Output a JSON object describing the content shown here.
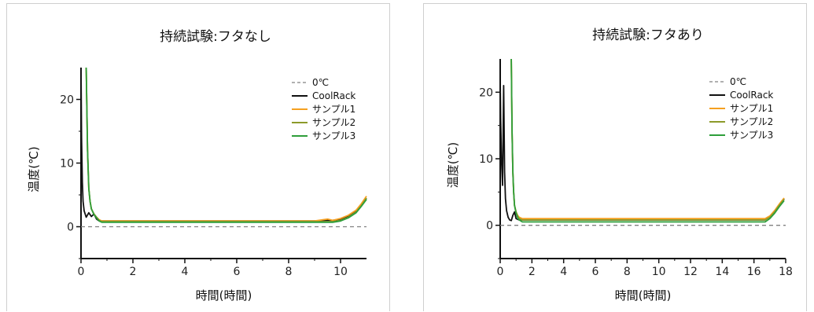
{
  "chart_data": [
    {
      "type": "line",
      "title": "持続試験:フタなし",
      "xlabel": "時間(時間)",
      "ylabel": "温度(℃)",
      "xlim": [
        0,
        11
      ],
      "ylim": [
        -5,
        25
      ],
      "xticks": [
        0,
        2,
        4,
        6,
        8,
        10
      ],
      "yticks": [
        0,
        10,
        20
      ],
      "legend_position": "top-right",
      "series": [
        {
          "name": "0℃",
          "color": "#808080",
          "dash": true,
          "x": [
            0,
            11
          ],
          "y": [
            0,
            0
          ]
        },
        {
          "name": "CoolRack",
          "color": "#111111",
          "x": [
            0,
            0.02,
            0.05,
            0.08,
            0.12,
            0.2,
            0.3,
            0.4,
            0.5,
            0.6,
            0.7,
            1,
            2,
            3,
            4,
            5,
            6,
            7,
            8,
            9,
            9.5,
            9.7,
            10,
            10.3,
            10.6,
            10.8,
            11
          ],
          "y": [
            25,
            14,
            7,
            4,
            2.5,
            1.5,
            2.2,
            1.6,
            2.0,
            1.2,
            0.9,
            0.9,
            0.9,
            0.9,
            0.9,
            0.9,
            0.9,
            0.9,
            0.9,
            0.9,
            1.0,
            1.0,
            1.2,
            1.6,
            2.4,
            3.4,
            4.5
          ]
        },
        {
          "name": "サンプル1",
          "color": "#f5a020",
          "x": [
            0.2,
            0.25,
            0.3,
            0.35,
            0.4,
            0.5,
            0.6,
            0.7,
            0.8,
            1,
            2,
            3,
            4,
            5,
            6,
            7,
            8,
            9,
            9.5,
            9.7,
            10,
            10.3,
            10.6,
            10.8,
            11
          ],
          "y": [
            25,
            12,
            6,
            4,
            2.8,
            2.0,
            1.5,
            1.1,
            0.9,
            0.9,
            0.9,
            0.9,
            0.9,
            0.9,
            0.9,
            0.9,
            0.9,
            0.9,
            1.2,
            1.0,
            1.3,
            1.8,
            2.6,
            3.6,
            4.8
          ]
        },
        {
          "name": "サンプル2",
          "color": "#8c9a2a",
          "x": [
            0.2,
            0.25,
            0.3,
            0.35,
            0.4,
            0.5,
            0.6,
            0.7,
            0.8,
            1,
            2,
            3,
            4,
            5,
            6,
            7,
            8,
            9,
            9.7,
            10,
            10.3,
            10.6,
            10.8,
            11
          ],
          "y": [
            25,
            12,
            6,
            4,
            2.8,
            2.0,
            1.5,
            1.0,
            0.8,
            0.8,
            0.8,
            0.8,
            0.8,
            0.8,
            0.8,
            0.8,
            0.8,
            0.8,
            0.8,
            1.0,
            1.5,
            2.3,
            3.3,
            4.5
          ]
        },
        {
          "name": "サンプル3",
          "color": "#2e9e3a",
          "x": [
            0.2,
            0.25,
            0.3,
            0.35,
            0.4,
            0.5,
            0.6,
            0.7,
            0.8,
            1,
            2,
            3,
            4,
            5,
            6,
            7,
            8,
            9,
            9.7,
            10,
            10.3,
            10.6,
            10.8,
            11
          ],
          "y": [
            25,
            12,
            6,
            4,
            2.8,
            1.9,
            1.4,
            0.9,
            0.7,
            0.7,
            0.7,
            0.7,
            0.7,
            0.7,
            0.7,
            0.7,
            0.7,
            0.7,
            0.7,
            0.9,
            1.4,
            2.2,
            3.2,
            4.3
          ]
        }
      ]
    },
    {
      "type": "line",
      "title": "持続試験:フタあり",
      "xlabel": "時間(時間)",
      "ylabel": "温度(℃)",
      "xlim": [
        0,
        18
      ],
      "ylim": [
        -5,
        25
      ],
      "xticks": [
        0,
        2,
        4,
        6,
        8,
        10,
        12,
        14,
        16,
        18
      ],
      "yticks": [
        0,
        10,
        20
      ],
      "legend_position": "top-right",
      "series": [
        {
          "name": "0℃",
          "color": "#808080",
          "dash": true,
          "x": [
            0,
            18
          ],
          "y": [
            0,
            0
          ]
        },
        {
          "name": "CoolRack",
          "color": "#111111",
          "x": [
            0,
            0.03,
            0.08,
            0.15,
            0.22,
            0.28,
            0.33,
            0.4,
            0.5,
            0.6,
            0.7,
            0.8,
            0.9,
            1.0,
            1.2,
            2,
            4,
            6,
            8,
            10,
            12,
            14,
            16,
            16.7,
            17,
            17.3,
            17.6,
            17.9
          ],
          "y": [
            22,
            16,
            10,
            6,
            21,
            8,
            4,
            2.2,
            1.2,
            0.8,
            0.7,
            1.5,
            2.0,
            1.0,
            0.8,
            0.8,
            0.8,
            0.8,
            0.8,
            0.8,
            0.8,
            0.8,
            0.8,
            0.8,
            1.3,
            2.0,
            3.0,
            4.0
          ]
        },
        {
          "name": "サンプル1",
          "color": "#f5a020",
          "x": [
            0.7,
            0.75,
            0.8,
            0.85,
            0.9,
            1.0,
            1.1,
            1.2,
            1.4,
            2,
            4,
            6,
            8,
            10,
            12,
            14,
            16,
            16.7,
            17,
            17.3,
            17.6,
            17.9
          ],
          "y": [
            25,
            14,
            8,
            5,
            3,
            2,
            1.5,
            1.2,
            1.0,
            1.0,
            1.0,
            1.0,
            1.0,
            1.0,
            1.0,
            1.0,
            1.0,
            1.0,
            1.4,
            2.2,
            3.2,
            4.1
          ]
        },
        {
          "name": "サンプル2",
          "color": "#8c9a2a",
          "x": [
            0.7,
            0.75,
            0.8,
            0.85,
            0.9,
            1.0,
            1.1,
            1.2,
            1.4,
            2,
            4,
            6,
            8,
            10,
            12,
            14,
            16,
            16.7,
            17,
            17.3,
            17.6,
            17.9
          ],
          "y": [
            25,
            14,
            8,
            5,
            3,
            2,
            1.4,
            1.0,
            0.8,
            0.8,
            0.8,
            0.8,
            0.8,
            0.8,
            0.8,
            0.8,
            0.8,
            0.8,
            1.2,
            2.0,
            3.0,
            3.9
          ]
        },
        {
          "name": "サンプル3",
          "color": "#2e9e3a",
          "x": [
            0.7,
            0.75,
            0.8,
            0.85,
            0.9,
            1.0,
            1.1,
            1.2,
            1.4,
            2,
            4,
            6,
            8,
            10,
            12,
            14,
            16,
            16.7,
            17,
            17.3,
            17.6,
            17.9
          ],
          "y": [
            25,
            14,
            8,
            5,
            3,
            1.8,
            1.1,
            0.8,
            0.5,
            0.5,
            0.5,
            0.5,
            0.5,
            0.5,
            0.5,
            0.5,
            0.5,
            0.5,
            1.0,
            1.8,
            2.8,
            3.7
          ]
        }
      ]
    }
  ]
}
